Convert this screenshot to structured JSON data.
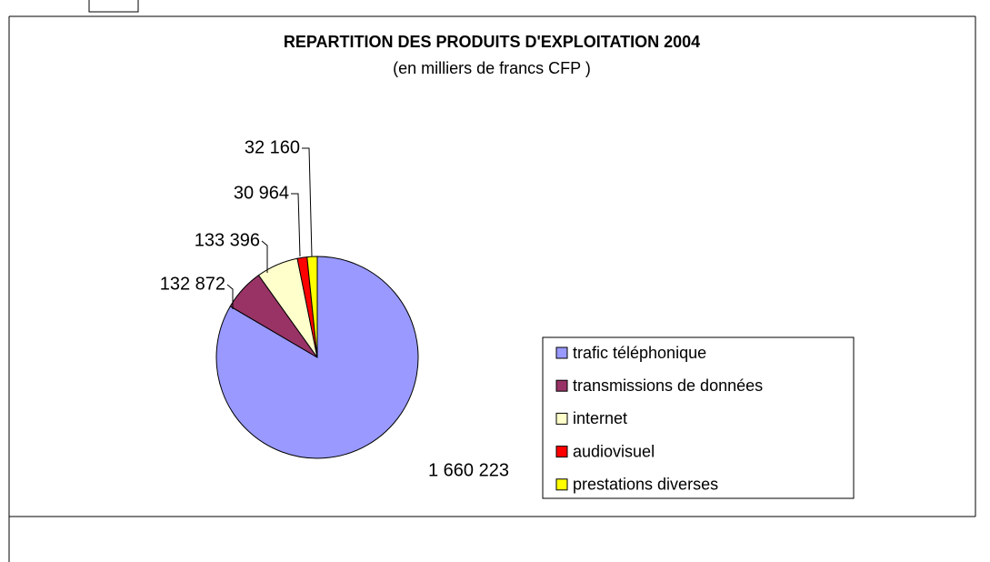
{
  "chart_data": {
    "type": "pie",
    "title": "REPARTITION DES PRODUITS D'EXPLOITATION  2004",
    "subtitle": "(en milliers de francs CFP )",
    "categories": [
      "trafic téléphonique",
      "transmissions de données",
      "internet",
      "audiovisuel",
      "prestations diverses"
    ],
    "values": [
      1660223,
      132872,
      133396,
      30964,
      32160
    ],
    "value_labels": [
      "1 660 223",
      "132 872",
      "133 396",
      "30 964",
      "32 160"
    ],
    "colors": [
      "#9999ff",
      "#993366",
      "#ffffcc",
      "#ff0000",
      "#ffff00"
    ],
    "legend": "right"
  }
}
